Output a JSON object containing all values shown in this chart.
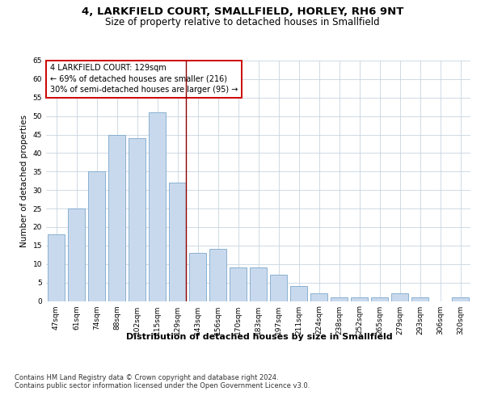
{
  "title": "4, LARKFIELD COURT, SMALLFIELD, HORLEY, RH6 9NT",
  "subtitle": "Size of property relative to detached houses in Smallfield",
  "xlabel": "Distribution of detached houses by size in Smallfield",
  "ylabel": "Number of detached properties",
  "categories": [
    "47sqm",
    "61sqm",
    "74sqm",
    "88sqm",
    "102sqm",
    "115sqm",
    "129sqm",
    "143sqm",
    "156sqm",
    "170sqm",
    "183sqm",
    "197sqm",
    "211sqm",
    "224sqm",
    "238sqm",
    "252sqm",
    "265sqm",
    "279sqm",
    "293sqm",
    "306sqm",
    "320sqm"
  ],
  "values": [
    18,
    25,
    35,
    45,
    44,
    51,
    32,
    13,
    14,
    9,
    9,
    7,
    4,
    2,
    1,
    1,
    1,
    2,
    1,
    0,
    1
  ],
  "bar_color": "#c9d9ed",
  "bar_edge_color": "#7aa8cc",
  "highlight_index": 6,
  "highlight_line_color": "#8b0000",
  "ylim": [
    0,
    65
  ],
  "yticks": [
    0,
    5,
    10,
    15,
    20,
    25,
    30,
    35,
    40,
    45,
    50,
    55,
    60,
    65
  ],
  "annotation_title": "4 LARKFIELD COURT: 129sqm",
  "annotation_line1": "← 69% of detached houses are smaller (216)",
  "annotation_line2": "30% of semi-detached houses are larger (95) →",
  "annotation_box_color": "#ffffff",
  "annotation_box_edge_color": "#cc0000",
  "footer_line1": "Contains HM Land Registry data © Crown copyright and database right 2024.",
  "footer_line2": "Contains public sector information licensed under the Open Government Licence v3.0.",
  "bg_color": "#ffffff",
  "grid_color": "#c8d4e0",
  "title_fontsize": 9.5,
  "subtitle_fontsize": 8.5,
  "xlabel_fontsize": 8,
  "ylabel_fontsize": 7.5,
  "tick_fontsize": 6.5,
  "annotation_fontsize": 7,
  "footer_fontsize": 6
}
